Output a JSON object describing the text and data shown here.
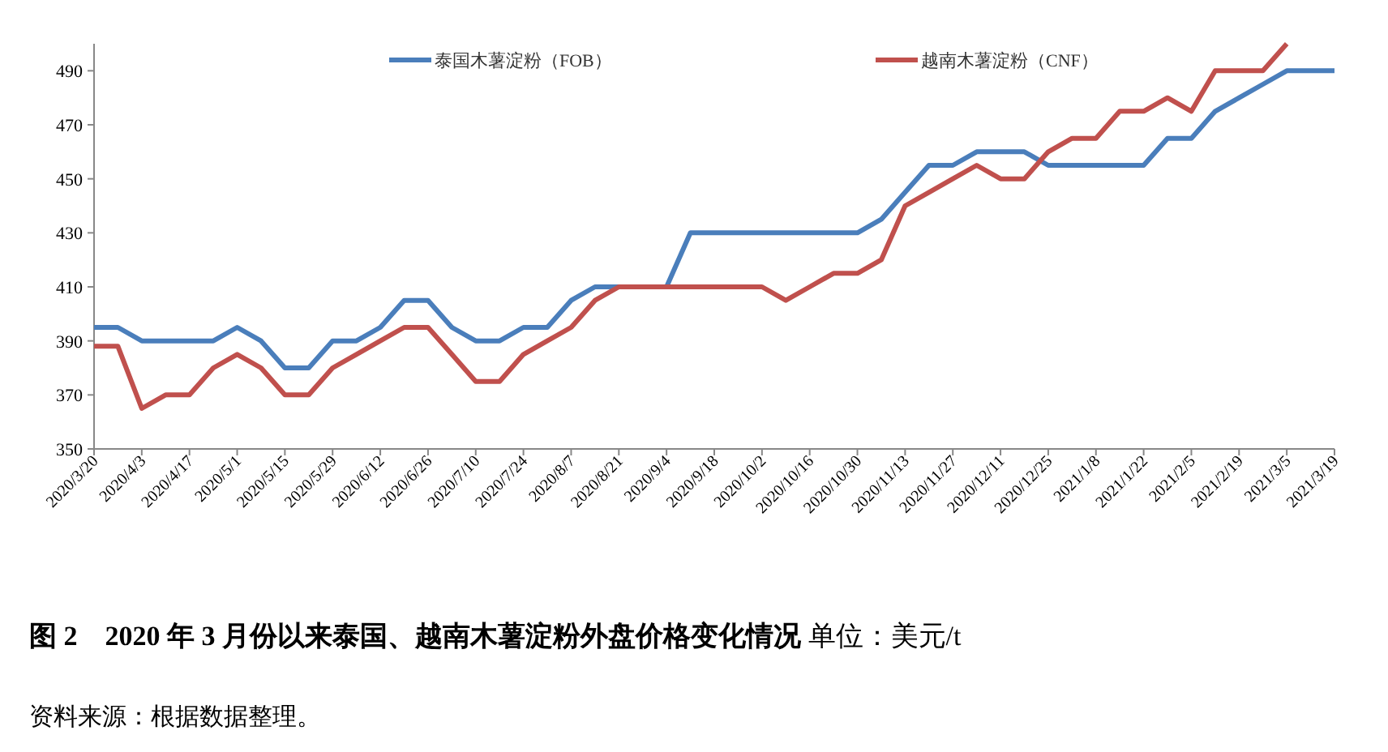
{
  "chart_data": {
    "type": "line",
    "title": "**图 2　2020 年 3 月份以来泰国、越南木薯淀粉外盘价格变化情况** 单位：美元/t",
    "annotations": [
      "资料来源：根据数据整理。"
    ],
    "categories": [
      "2020/3/20",
      null,
      "2020/4/3",
      null,
      "2020/4/17",
      null,
      "2020/5/1",
      null,
      "2020/5/15",
      null,
      "2020/5/29",
      null,
      "2020/6/12",
      null,
      "2020/6/26",
      null,
      "2020/7/10",
      null,
      "2020/7/24",
      null,
      "2020/8/7",
      null,
      "2020/8/21",
      null,
      "2020/9/4",
      null,
      "2020/9/18",
      null,
      "2020/10/2",
      null,
      "2020/10/16",
      null,
      "2020/10/30",
      null,
      "2020/11/13",
      null,
      "2020/11/27",
      null,
      "2020/12/11",
      null,
      "2020/12/25",
      null,
      "2021/1/8",
      null,
      "2021/1/22",
      null,
      "2021/2/5",
      null,
      "2021/2/19",
      null,
      "2021/3/5",
      null,
      "2021/3/19"
    ],
    "series": [
      {
        "name": "泰国木薯淀粉（FOB）",
        "color": "#4a7ebb",
        "values": [
          395,
          395,
          390,
          390,
          390,
          390,
          395,
          390,
          380,
          380,
          390,
          390,
          395,
          405,
          405,
          395,
          390,
          390,
          395,
          395,
          405,
          410,
          410,
          null,
          410,
          430,
          430,
          430,
          430,
          430,
          430,
          430,
          430,
          435,
          445,
          455,
          455,
          460,
          460,
          460,
          455,
          455,
          455,
          455,
          455,
          465,
          465,
          475,
          480,
          485,
          490,
          490,
          490
        ]
      },
      {
        "name": "越南木薯淀粉（CNF）",
        "color": "#c0504d",
        "values": [
          388,
          388,
          365,
          370,
          370,
          380,
          385,
          380,
          370,
          370,
          380,
          385,
          390,
          395,
          395,
          385,
          375,
          375,
          385,
          390,
          395,
          405,
          410,
          410,
          410,
          410,
          410,
          410,
          410,
          405,
          410,
          415,
          415,
          420,
          440,
          445,
          450,
          455,
          450,
          450,
          460,
          465,
          465,
          475,
          475,
          480,
          475,
          490,
          490,
          490,
          500,
          null,
          null
        ]
      }
    ],
    "ylim": [
      350,
      500
    ],
    "yticks": [
      350,
      370,
      390,
      410,
      430,
      450,
      470,
      490
    ],
    "legend": "top"
  }
}
